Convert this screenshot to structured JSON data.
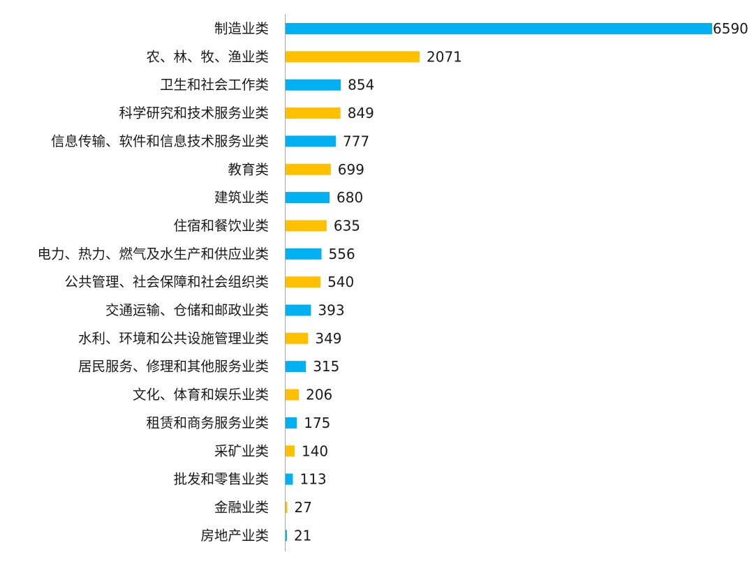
{
  "colors": {
    "blue": "#00B0F0",
    "orange": "#FFC000",
    "axis": "#a6a6a6"
  },
  "chart_data": {
    "type": "bar",
    "orientation": "horizontal",
    "title": "",
    "xlabel": "",
    "ylabel": "",
    "grid": false,
    "legend": "none",
    "xlim": [
      0,
      6590
    ],
    "categories": [
      "制造业类",
      "农、林、牧、渔业类",
      "卫生和社会工作类",
      "科学研究和技术服务业类",
      "信息传输、软件和信息技术服务业类",
      "教育类",
      "建筑业类",
      "住宿和餐饮业类",
      "电力、热力、燃气及水生产和供应业类",
      "公共管理、社会保障和社会组织类",
      "交通运输、仓储和邮政业类",
      "水利、环境和公共设施管理业类",
      "居民服务、修理和其他服务业类",
      "文化、体育和娱乐业类",
      "租赁和商务服务业类",
      "采矿业类",
      "批发和零售业类",
      "金融业类",
      "房地产业类"
    ],
    "values": [
      6590,
      2071,
      854,
      849,
      777,
      699,
      680,
      635,
      556,
      540,
      393,
      349,
      315,
      206,
      175,
      140,
      113,
      27,
      21
    ],
    "bar_colors": [
      "blue",
      "orange",
      "blue",
      "orange",
      "blue",
      "orange",
      "blue",
      "orange",
      "blue",
      "orange",
      "blue",
      "orange",
      "blue",
      "orange",
      "blue",
      "orange",
      "blue",
      "orange",
      "blue"
    ]
  }
}
